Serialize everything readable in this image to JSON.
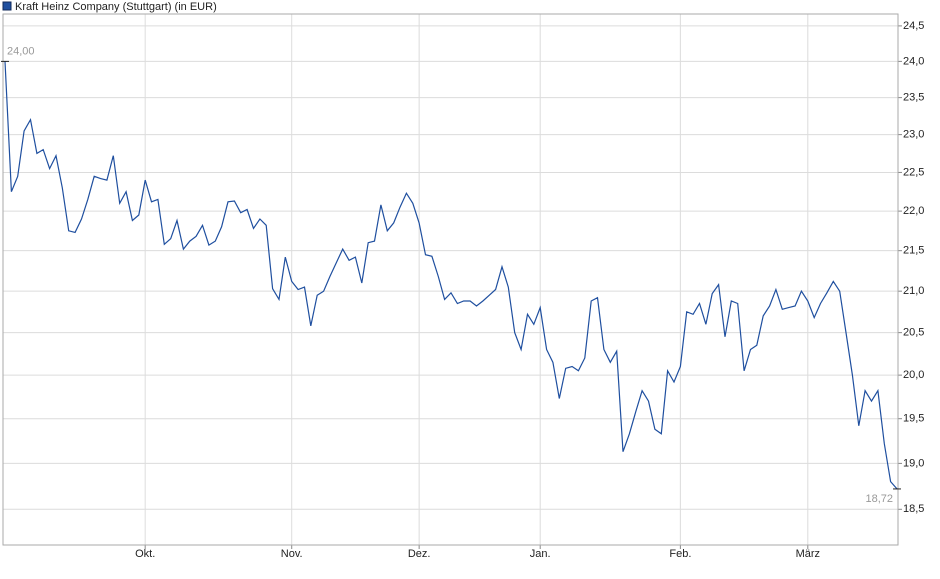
{
  "chart_data": {
    "type": "line",
    "log_scale": true,
    "grid": true,
    "categories": [
      null,
      null,
      null,
      null,
      null,
      null,
      null,
      null,
      null,
      null,
      null,
      null,
      null,
      null,
      null,
      null,
      null,
      null,
      null,
      null,
      null,
      null,
      "Okt.",
      null,
      null,
      null,
      null,
      null,
      null,
      null,
      null,
      null,
      null,
      null,
      null,
      null,
      null,
      null,
      null,
      null,
      null,
      null,
      null,
      null,
      null,
      "Nov.",
      null,
      null,
      null,
      null,
      null,
      null,
      null,
      null,
      null,
      null,
      null,
      null,
      null,
      null,
      null,
      null,
      null,
      null,
      null,
      "Dez.",
      null,
      null,
      null,
      null,
      null,
      null,
      null,
      null,
      null,
      null,
      null,
      null,
      null,
      null,
      null,
      null,
      null,
      null,
      "Jan.",
      null,
      null,
      null,
      null,
      null,
      null,
      null,
      null,
      null,
      null,
      null,
      null,
      null,
      null,
      null,
      null,
      null,
      null,
      null,
      null,
      null,
      "Feb.",
      null,
      null,
      null,
      null,
      null,
      null,
      null,
      null,
      null,
      null,
      null,
      null,
      null,
      null,
      null,
      null,
      null,
      null,
      null,
      "März",
      null,
      null,
      null,
      null,
      null,
      null,
      null,
      null,
      null,
      null,
      null,
      null,
      null,
      null
    ],
    "series": [
      {
        "name": "Kraft Heinz Company (Stuttgart) (in EUR)",
        "color": "#1f4f9f",
        "values": [
          24.0,
          22.25,
          22.45,
          23.05,
          23.2,
          22.75,
          22.8,
          22.55,
          22.72,
          22.3,
          21.75,
          21.73,
          21.9,
          22.15,
          22.45,
          22.42,
          22.4,
          22.72,
          22.1,
          22.25,
          21.88,
          21.95,
          22.4,
          22.12,
          22.15,
          21.58,
          21.65,
          21.88,
          21.52,
          21.62,
          21.68,
          21.82,
          21.57,
          21.62,
          21.8,
          22.12,
          22.13,
          21.98,
          22.02,
          21.78,
          21.9,
          21.82,
          21.03,
          20.9,
          21.42,
          21.12,
          21.02,
          21.05,
          20.58,
          20.95,
          21.0,
          21.18,
          21.35,
          21.52,
          21.38,
          21.42,
          21.1,
          21.6,
          21.62,
          22.08,
          21.75,
          21.85,
          22.05,
          22.23,
          22.1,
          21.85,
          21.45,
          21.43,
          21.18,
          20.9,
          20.98,
          20.85,
          20.88,
          20.88,
          20.82,
          20.88,
          20.95,
          21.02,
          21.3,
          21.05,
          20.5,
          20.3,
          20.72,
          20.6,
          20.8,
          20.3,
          20.15,
          19.73,
          20.08,
          20.1,
          20.05,
          20.2,
          20.88,
          20.92,
          20.3,
          20.15,
          20.28,
          19.13,
          19.33,
          19.58,
          19.82,
          19.7,
          19.38,
          19.33,
          20.05,
          19.92,
          20.1,
          20.75,
          20.72,
          20.85,
          20.6,
          20.97,
          21.08,
          20.45,
          20.88,
          20.85,
          20.05,
          20.3,
          20.35,
          20.7,
          20.82,
          21.02,
          20.78,
          20.8,
          20.82,
          21.0,
          20.88,
          20.68,
          20.85,
          20.98,
          21.12,
          21.0,
          20.5,
          20.0,
          19.42,
          19.82,
          19.7,
          19.82,
          19.22,
          18.8,
          18.72
        ],
        "value_labels": [
          "24,00",
          null,
          null,
          null,
          null,
          null,
          null,
          null,
          null,
          null,
          null,
          null,
          null,
          null,
          null,
          null,
          null,
          null,
          null,
          null,
          null,
          null,
          null,
          null,
          null,
          null,
          null,
          null,
          null,
          null,
          null,
          null,
          null,
          null,
          null,
          null,
          null,
          null,
          null,
          null,
          null,
          null,
          null,
          null,
          null,
          null,
          null,
          null,
          null,
          null,
          null,
          null,
          null,
          null,
          null,
          null,
          null,
          null,
          null,
          null,
          null,
          null,
          null,
          null,
          null,
          null,
          null,
          null,
          null,
          null,
          null,
          null,
          null,
          null,
          null,
          null,
          null,
          null,
          null,
          null,
          null,
          null,
          null,
          null,
          null,
          null,
          null,
          null,
          null,
          null,
          null,
          null,
          null,
          null,
          null,
          null,
          null,
          null,
          null,
          null,
          null,
          null,
          null,
          null,
          null,
          null,
          null,
          null,
          null,
          null,
          null,
          null,
          null,
          null,
          null,
          null,
          null,
          null,
          null,
          null,
          null,
          null,
          null,
          null,
          null,
          null,
          null,
          null,
          null,
          null,
          null,
          null,
          null,
          null,
          null,
          null,
          null,
          null,
          null,
          null,
          "18,72"
        ]
      }
    ],
    "ylim": [
      18.12,
      24.67
    ],
    "yticks": [
      {
        "value": 18.5,
        "label": "18,5"
      },
      {
        "value": 19,
        "label": "19,0"
      },
      {
        "value": 19.5,
        "label": "19,5"
      },
      {
        "value": 20,
        "label": "20,0"
      },
      {
        "value": 20.5,
        "label": "20,5"
      },
      {
        "value": 21,
        "label": "21,0"
      },
      {
        "value": 21.5,
        "label": "21,5"
      },
      {
        "value": 22,
        "label": "22,0"
      },
      {
        "value": 22.5,
        "label": "22,5"
      },
      {
        "value": 23,
        "label": "23,0"
      },
      {
        "value": 23.5,
        "label": "23,5"
      },
      {
        "value": 24,
        "label": "24,0"
      },
      {
        "value": 24.5,
        "label": "24,5"
      }
    ]
  }
}
